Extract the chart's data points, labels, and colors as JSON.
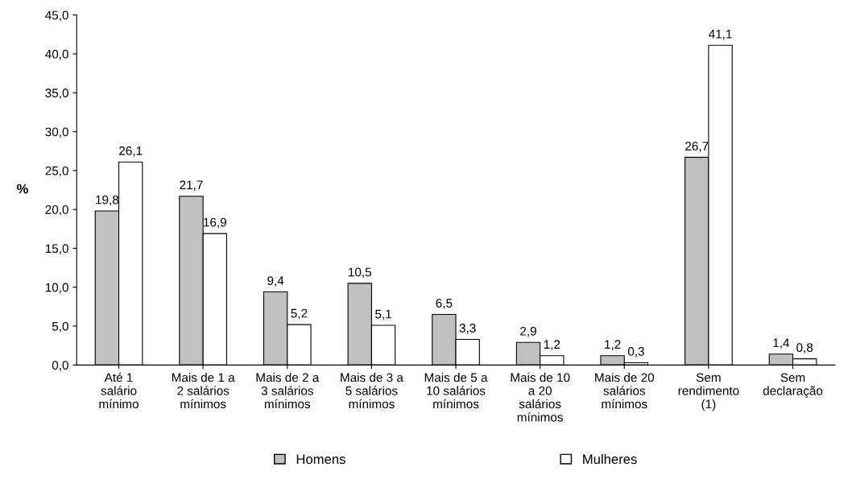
{
  "chart_data": {
    "type": "bar",
    "ylabel": "%",
    "categories": [
      "Até 1\nsalário\nmínimo",
      "Mais de 1 a\n2 salários\nmínimos",
      "Mais de 2 a\n3 salários\nmínimos",
      "Mais de 3 a\n5 salários\nmínimos",
      "Mais de 5 a\n10 salários\nmínimos",
      "Mais de 10\na 20\nsalários\nmínimos",
      "Mais de 20\nsalários\nmínimos",
      "Sem\nrendimento\n(1)",
      "Sem\ndeclaração"
    ],
    "series": [
      {
        "name": "Homens",
        "color": "#c0c0c0",
        "values": [
          19.8,
          21.7,
          9.4,
          10.5,
          6.5,
          2.9,
          1.2,
          26.7,
          1.4
        ],
        "value_labels": [
          "19,8",
          "21,7",
          "9,4",
          "10,5",
          "6,5",
          "2,9",
          "1,2",
          "26,7",
          "1,4"
        ]
      },
      {
        "name": "Mulheres",
        "color": "#ffffff",
        "values": [
          26.1,
          16.9,
          5.2,
          5.1,
          3.3,
          1.2,
          0.3,
          41.1,
          0.8
        ],
        "value_labels": [
          "26,1",
          "16,9",
          "5,2",
          "5,1",
          "3,3",
          "1,2",
          "0,3",
          "41,1",
          "0,8"
        ]
      }
    ],
    "ylim": [
      0,
      45
    ],
    "yticks": [
      {
        "value": 0,
        "label": "0,0"
      },
      {
        "value": 5,
        "label": "5,0"
      },
      {
        "value": 10,
        "label": "10,0"
      },
      {
        "value": 15,
        "label": "15,0"
      },
      {
        "value": 20,
        "label": "20,0"
      },
      {
        "value": 25,
        "label": "25,0"
      },
      {
        "value": 30,
        "label": "30,0"
      },
      {
        "value": 35,
        "label": "35,0"
      },
      {
        "value": 40,
        "label": "40,0"
      },
      {
        "value": 45,
        "label": "45,0"
      }
    ],
    "grid": false,
    "legend": "bottom"
  }
}
